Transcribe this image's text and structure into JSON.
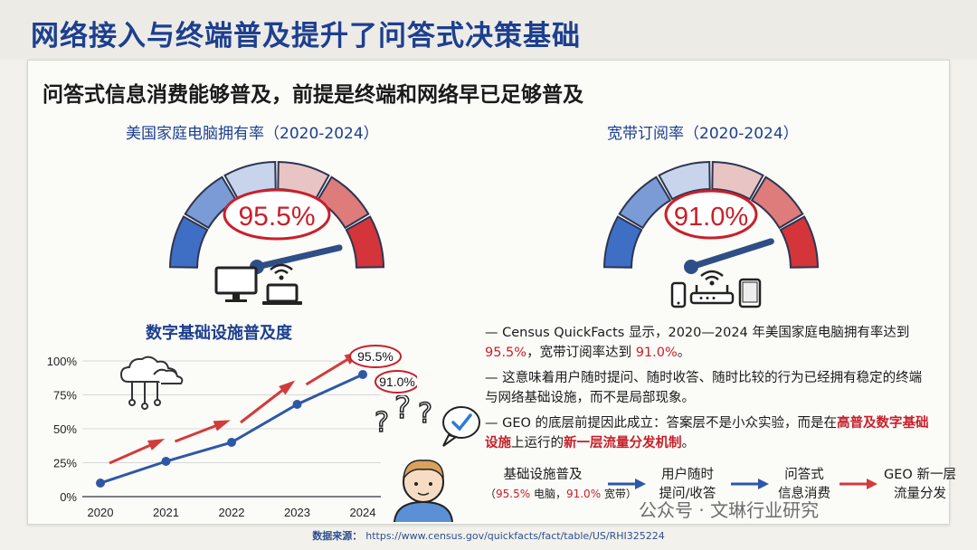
{
  "header": {
    "title": "网络接入与终端普及提升了问答式决策基础"
  },
  "subtitle": "问答式信息消费能够普及，前提是终端和网络早已足够普及",
  "gauges": [
    {
      "title": "美国家庭电脑拥有率（2020-2024）",
      "value_label": "95.5%",
      "fraction": 0.955
    },
    {
      "title": "宽带订阅率（2020-2024）",
      "value_label": "91.0%",
      "fraction": 0.91
    }
  ],
  "chart_data": {
    "type": "line",
    "title": "数字基础设施普及度",
    "categories": [
      "2020",
      "2021",
      "2022",
      "2023",
      "2024"
    ],
    "yticks": [
      "0%",
      "25%",
      "50%",
      "75%",
      "100%"
    ],
    "ylim": [
      0,
      100
    ],
    "values": [
      10,
      26,
      40,
      68,
      90
    ],
    "callouts": [
      "95.5%",
      "91.0%"
    ],
    "colors": {
      "line": "#2e57a6",
      "arrow": "#d23b3b"
    }
  },
  "bullets": [
    {
      "parts": [
        "— Census QuickFacts 显示，2020—2024 年美国家庭电脑拥有率达到",
        "95.5%",
        "，宽带订阅率达到 ",
        "91.0%",
        "。"
      ]
    },
    {
      "parts": [
        "— 这意味着用户随时提问、随时收答、随时比较的行为已经拥有稳定的终端与网络基础设施，而不是局部现象。"
      ]
    },
    {
      "parts": [
        "— GEO 的底层前提因此成立：答案层不是小众实验，而是在",
        "高普及数字基础设施",
        "上运行的",
        "新一层流量分发机制",
        "。"
      ]
    }
  ],
  "flow": {
    "step1": "基础设施普及",
    "step1_sub_open": "（",
    "step1_sub_v1": "95.5%",
    "step1_sub_mid": " 电脑，",
    "step1_sub_v2": "91.0%",
    "step1_sub_close": " 宽带）",
    "step2": [
      "用户随时",
      "提问/收答"
    ],
    "step3": [
      "问答式",
      "信息消费"
    ],
    "step4": [
      "GEO 新一层",
      "流量分发"
    ]
  },
  "source": {
    "label": "数据来源：",
    "url": "https://www.census.gov/quickfacts/fact/table/US/RHI325224"
  },
  "watermark": "公众号 · 文琳行业研究",
  "icons": [
    "desktop-computer-icon",
    "laptop-icon",
    "wifi-icon",
    "router-icon",
    "phone-icon",
    "tablet-icon",
    "cloud-network-icon",
    "thinking-person-icon"
  ]
}
